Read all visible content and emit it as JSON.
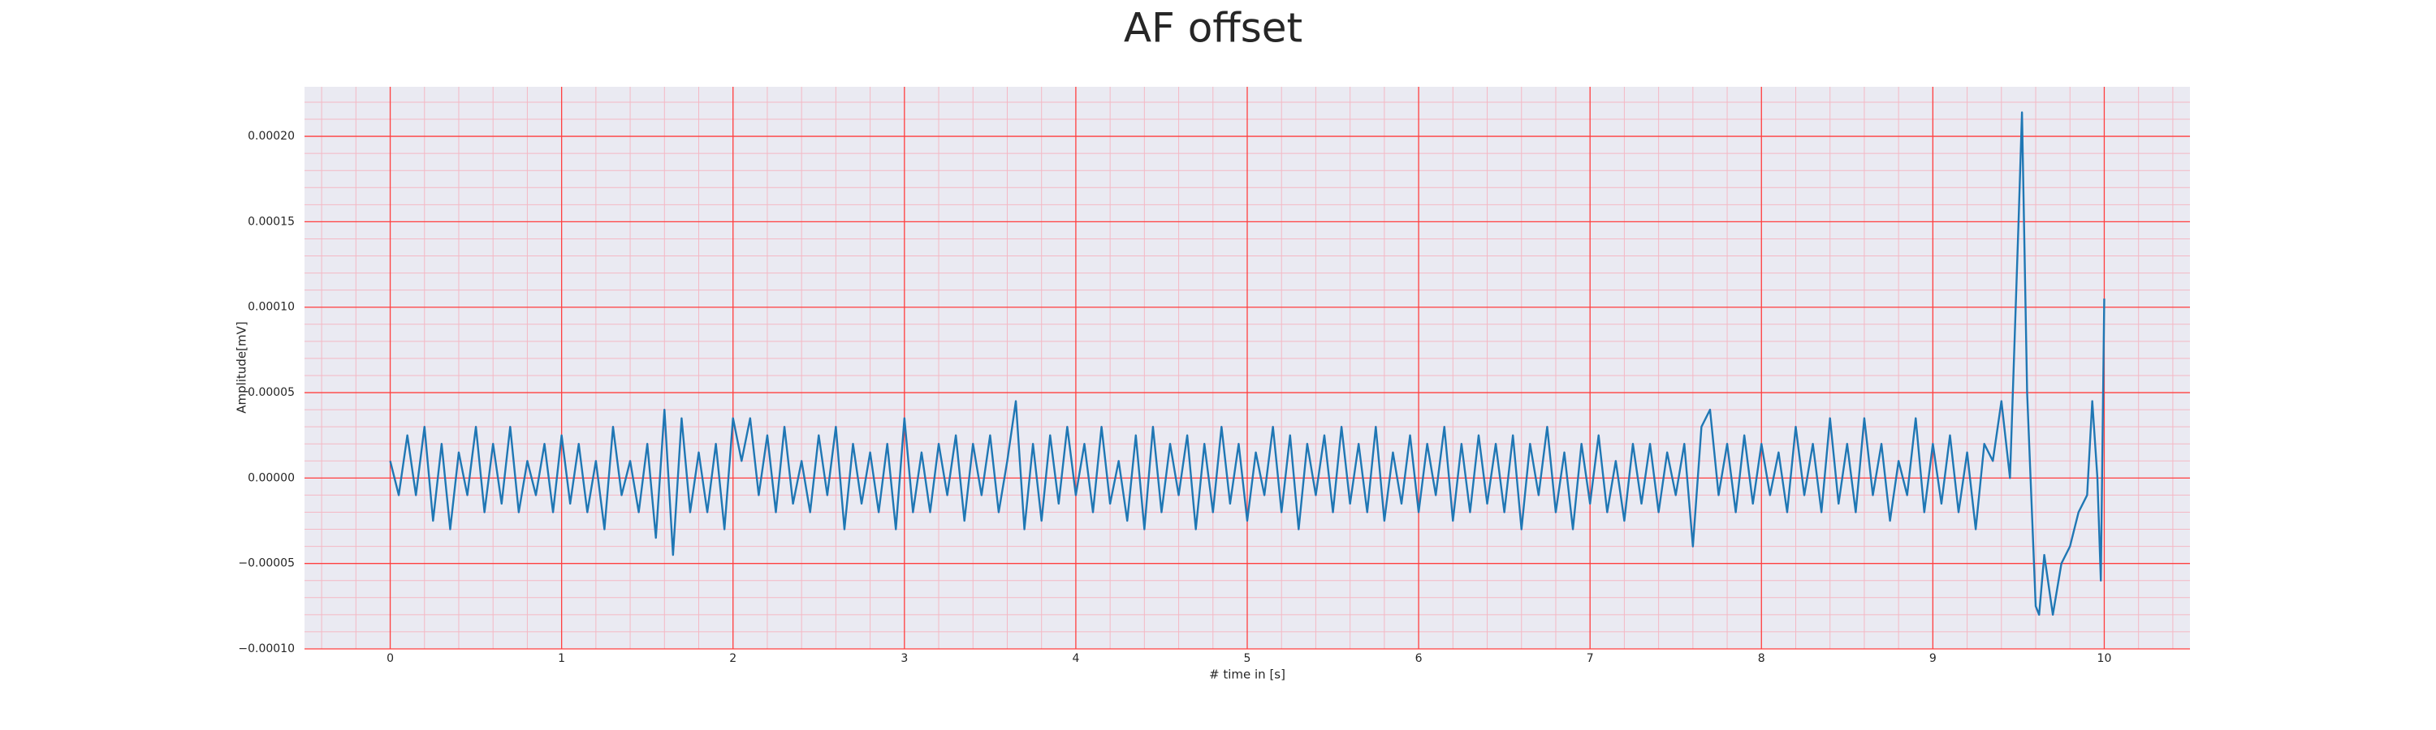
{
  "chart_data": {
    "type": "line",
    "title": "AF offset",
    "xlabel": "# time in [s]",
    "ylabel": "Amplitude[mV]",
    "xlim": [
      -0.5,
      10.5
    ],
    "ylim": [
      -0.0001,
      0.000229
    ],
    "xticks": [
      0,
      1,
      2,
      3,
      4,
      5,
      6,
      7,
      8,
      9,
      10
    ],
    "yticks": [
      {
        "value": -0.0001,
        "label": "−0.00010"
      },
      {
        "value": -5e-05,
        "label": "−0.00005"
      },
      {
        "value": 0,
        "label": "0.00000"
      },
      {
        "value": 5e-05,
        "label": "0.00005"
      },
      {
        "value": 0.0001,
        "label": "0.00010"
      },
      {
        "value": 0.00015,
        "label": "0.00015"
      },
      {
        "value": 0.0002,
        "label": "0.00020"
      }
    ],
    "grid": true,
    "grid_color": "#ff4040",
    "minor_grid": true,
    "minor_grid_color": "#f4b8c4",
    "background": "#eaeaf2",
    "series": [
      {
        "color": "#1f77b4",
        "x": [
          0,
          0.05,
          0.1,
          0.15,
          0.2,
          0.25,
          0.3,
          0.35,
          0.4,
          0.45,
          0.5,
          0.55,
          0.6,
          0.65,
          0.7,
          0.75,
          0.8,
          0.85,
          0.9,
          0.95,
          1,
          1.05,
          1.1,
          1.15,
          1.2,
          1.25,
          1.3,
          1.35,
          1.4,
          1.45,
          1.5,
          1.55,
          1.6,
          1.65,
          1.7,
          1.75,
          1.8,
          1.85,
          1.9,
          1.95,
          2,
          2.05,
          2.1,
          2.15,
          2.2,
          2.25,
          2.3,
          2.35,
          2.4,
          2.45,
          2.5,
          2.55,
          2.6,
          2.65,
          2.7,
          2.75,
          2.8,
          2.85,
          2.9,
          2.95,
          3,
          3.05,
          3.1,
          3.15,
          3.2,
          3.25,
          3.3,
          3.35,
          3.4,
          3.45,
          3.5,
          3.55,
          3.6,
          3.65,
          3.7,
          3.75,
          3.8,
          3.85,
          3.9,
          3.95,
          4,
          4.05,
          4.1,
          4.15,
          4.2,
          4.25,
          4.3,
          4.35,
          4.4,
          4.45,
          4.5,
          4.55,
          4.6,
          4.65,
          4.7,
          4.75,
          4.8,
          4.85,
          4.9,
          4.95,
          5,
          5.05,
          5.1,
          5.15,
          5.2,
          5.25,
          5.3,
          5.35,
          5.4,
          5.45,
          5.5,
          5.55,
          5.6,
          5.65,
          5.7,
          5.75,
          5.8,
          5.85,
          5.9,
          5.95,
          6,
          6.05,
          6.1,
          6.15,
          6.2,
          6.25,
          6.3,
          6.35,
          6.4,
          6.45,
          6.5,
          6.55,
          6.6,
          6.65,
          6.7,
          6.75,
          6.8,
          6.85,
          6.9,
          6.95,
          7,
          7.05,
          7.1,
          7.15,
          7.2,
          7.25,
          7.3,
          7.35,
          7.4,
          7.45,
          7.5,
          7.55,
          7.6,
          7.65,
          7.7,
          7.75,
          7.8,
          7.85,
          7.9,
          7.95,
          8,
          8.05,
          8.1,
          8.15,
          8.2,
          8.25,
          8.3,
          8.35,
          8.4,
          8.45,
          8.5,
          8.55,
          8.6,
          8.65,
          8.7,
          8.75,
          8.8,
          8.85,
          8.9,
          8.95,
          9,
          9.05,
          9.1,
          9.15,
          9.2,
          9.25,
          9.3,
          9.35,
          9.4,
          9.45,
          9.5,
          9.52,
          9.55,
          9.6,
          9.62,
          9.65,
          9.7,
          9.75,
          9.8,
          9.85,
          9.9,
          9.93,
          9.96,
          9.98,
          10
        ],
        "values": [
          1e-05,
          -1e-05,
          2.5e-05,
          -1e-05,
          3e-05,
          -2.5e-05,
          2e-05,
          -3e-05,
          1.5e-05,
          -1e-05,
          3e-05,
          -2e-05,
          2e-05,
          -1.5e-05,
          3e-05,
          -2e-05,
          1e-05,
          -1e-05,
          2e-05,
          -2e-05,
          2.5e-05,
          -1.5e-05,
          2e-05,
          -2e-05,
          1e-05,
          -3e-05,
          3e-05,
          -1e-05,
          1e-05,
          -2e-05,
          2e-05,
          -3.5e-05,
          4e-05,
          -4.5e-05,
          3.5e-05,
          -2e-05,
          1.5e-05,
          -2e-05,
          2e-05,
          -3e-05,
          3.5e-05,
          1e-05,
          3.5e-05,
          -1e-05,
          2.5e-05,
          -2e-05,
          3e-05,
          -1.5e-05,
          1e-05,
          -2e-05,
          2.5e-05,
          -1e-05,
          3e-05,
          -3e-05,
          2e-05,
          -1.5e-05,
          1.5e-05,
          -2e-05,
          2e-05,
          -3e-05,
          3.5e-05,
          -2e-05,
          1.5e-05,
          -2e-05,
          2e-05,
          -1e-05,
          2.5e-05,
          -2.5e-05,
          2e-05,
          -1e-05,
          2.5e-05,
          -2e-05,
          1e-05,
          4.5e-05,
          -3e-05,
          2e-05,
          -2.5e-05,
          2.5e-05,
          -1.5e-05,
          3e-05,
          -1e-05,
          2e-05,
          -2e-05,
          3e-05,
          -1.5e-05,
          1e-05,
          -2.5e-05,
          2.5e-05,
          -3e-05,
          3e-05,
          -2e-05,
          2e-05,
          -1e-05,
          2.5e-05,
          -3e-05,
          2e-05,
          -2e-05,
          3e-05,
          -1.5e-05,
          2e-05,
          -2.5e-05,
          1.5e-05,
          -1e-05,
          3e-05,
          -2e-05,
          2.5e-05,
          -3e-05,
          2e-05,
          -1e-05,
          2.5e-05,
          -2e-05,
          3e-05,
          -1.5e-05,
          2e-05,
          -2e-05,
          3e-05,
          -2.5e-05,
          1.5e-05,
          -1.5e-05,
          2.5e-05,
          -2e-05,
          2e-05,
          -1e-05,
          3e-05,
          -2.5e-05,
          2e-05,
          -2e-05,
          2.5e-05,
          -1.5e-05,
          2e-05,
          -2e-05,
          2.5e-05,
          -3e-05,
          2e-05,
          -1e-05,
          3e-05,
          -2e-05,
          1.5e-05,
          -3e-05,
          2e-05,
          -1.5e-05,
          2.5e-05,
          -2e-05,
          1e-05,
          -2.5e-05,
          2e-05,
          -1.5e-05,
          2e-05,
          -2e-05,
          1.5e-05,
          -1e-05,
          2e-05,
          -4e-05,
          3e-05,
          4e-05,
          -1e-05,
          2e-05,
          -2e-05,
          2.5e-05,
          -1.5e-05,
          2e-05,
          -1e-05,
          1.5e-05,
          -2e-05,
          3e-05,
          -1e-05,
          2e-05,
          -2e-05,
          3.5e-05,
          -1.5e-05,
          2e-05,
          -2e-05,
          3.5e-05,
          -1e-05,
          2e-05,
          -2.5e-05,
          1e-05,
          -1e-05,
          3.5e-05,
          -2e-05,
          2e-05,
          -1.5e-05,
          2.5e-05,
          -2e-05,
          1.5e-05,
          -3e-05,
          2e-05,
          1e-05,
          4.5e-05,
          0,
          0.00015,
          0.000214,
          5e-05,
          -7.5e-05,
          -8e-05,
          -4.5e-05,
          -8e-05,
          -5e-05,
          -4e-05,
          -2e-05,
          -1e-05,
          4.5e-05,
          0,
          -6e-05,
          0.000105
        ]
      }
    ]
  }
}
